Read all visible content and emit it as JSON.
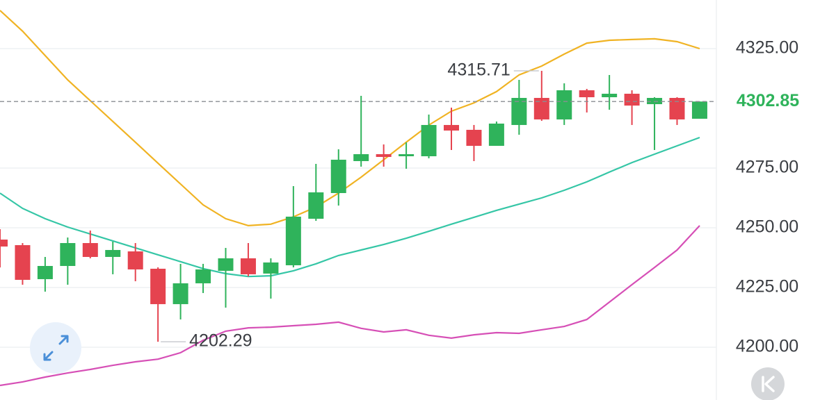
{
  "chart_data": {
    "type": "candlestick",
    "up_color": "#2fb35b",
    "down_color": "#e5434f",
    "candles": {
      "open": [
        4245.06,
        4242.73,
        4228.49,
        4234.01,
        4243.6,
        4237.79,
        4240.11,
        4232.85,
        4218.03,
        4226.75,
        4231.98,
        4237.21,
        4230.82,
        4234.3,
        4253.78,
        4264.53,
        4277.91,
        4280.81,
        4279.94,
        4279.94,
        4293.03,
        4291.0,
        4284.3,
        4293.03,
        4304.36,
        4295.35,
        4307.56,
        4304.65,
        4306.11,
        4301.75,
        4304.36,
        4295.64
      ],
      "high": [
        4249.4,
        4243.6,
        4237.79,
        4245.93,
        4248.84,
        4244.19,
        4243.6,
        4233.43,
        4234.89,
        4234.89,
        4241.57,
        4243.6,
        4237.21,
        4267.44,
        4276.75,
        4282.85,
        4305.23,
        4284.89,
        4285.76,
        4297.39,
        4300.29,
        4293.03,
        4294.48,
        4311.92,
        4315.71,
        4310.47,
        4308.14,
        4313.95,
        4307.56,
        4304.65,
        4304.65,
        4302.85
      ],
      "low": [
        4233.4,
        4226.16,
        4223.26,
        4226.16,
        4237.21,
        4230.53,
        4227.62,
        4202.29,
        4211.63,
        4222.68,
        4216.57,
        4229.65,
        4220.35,
        4233.43,
        4252.91,
        4259.3,
        4275.58,
        4275.58,
        4274.71,
        4279.07,
        4282.56,
        4277.91,
        4284.3,
        4288.95,
        4294.77,
        4293.03,
        4298.26,
        4299.42,
        4293.03,
        4282.56,
        4293.03,
        4295.64
      ],
      "close": [
        4242.15,
        4228.2,
        4234.01,
        4243.6,
        4237.79,
        4240.7,
        4232.56,
        4218.03,
        4226.75,
        4232.56,
        4237.21,
        4230.53,
        4235.47,
        4254.65,
        4264.82,
        4278.49,
        4280.81,
        4279.65,
        4280.81,
        4293.03,
        4290.7,
        4284.3,
        4293.61,
        4304.36,
        4295.35,
        4307.56,
        4304.65,
        4306.11,
        4301.16,
        4304.36,
        4295.35,
        4302.85
      ]
    },
    "lines": [
      {
        "color": "#f0b323",
        "values": [
          4341.0,
          4332.3,
          4322.1,
          4311.9,
          4303.2,
          4294.5,
          4285.8,
          4277.0,
          4268.3,
          4259.6,
          4253.8,
          4250.9,
          4251.5,
          4254.6,
          4258.7,
          4264.5,
          4271.2,
          4278.5,
          4285.8,
          4293.0,
          4298.8,
          4302.3,
          4307.0,
          4314.0,
          4317.7,
          4322.7,
          4327.3,
          4328.5,
          4328.8,
          4329.1,
          4327.9,
          4325.0
        ]
      },
      {
        "color": "#35c6a6",
        "values": [
          4264.5,
          4258.1,
          4253.8,
          4250.3,
          4247.4,
          4244.5,
          4241.6,
          4238.7,
          4235.8,
          4232.9,
          4230.8,
          4229.6,
          4229.9,
          4232.0,
          4234.9,
          4238.4,
          4240.7,
          4243.0,
          4245.6,
          4248.5,
          4251.5,
          4254.4,
          4257.3,
          4259.9,
          4262.5,
          4265.7,
          4269.2,
          4273.3,
          4277.3,
          4280.8,
          4284.3,
          4287.8
        ]
      },
      {
        "color": "#d64fb6",
        "values": [
          4184.0,
          4185.5,
          4187.5,
          4189.2,
          4190.7,
          4192.4,
          4193.9,
          4195.0,
          4197.7,
          4202.9,
          4206.7,
          4208.1,
          4208.4,
          4209.0,
          4209.6,
          4210.5,
          4207.9,
          4206.4,
          4207.3,
          4205.0,
          4203.8,
          4205.2,
          4206.1,
          4205.8,
          4207.3,
          4208.7,
          4211.6,
          4218.9,
          4226.2,
          4233.4,
          4240.7,
          4250.9
        ]
      }
    ],
    "ylim": [
      4177.9,
      4345.35
    ],
    "yticks": [
      {
        "value": 4200,
        "label": "4200.00"
      },
      {
        "value": 4225,
        "label": "4225.00"
      },
      {
        "value": 4250,
        "label": "4250.00"
      },
      {
        "value": 4275,
        "label": "4275.00"
      },
      {
        "value": 4325,
        "label": "4325.00"
      }
    ],
    "grid": true
  }
}
